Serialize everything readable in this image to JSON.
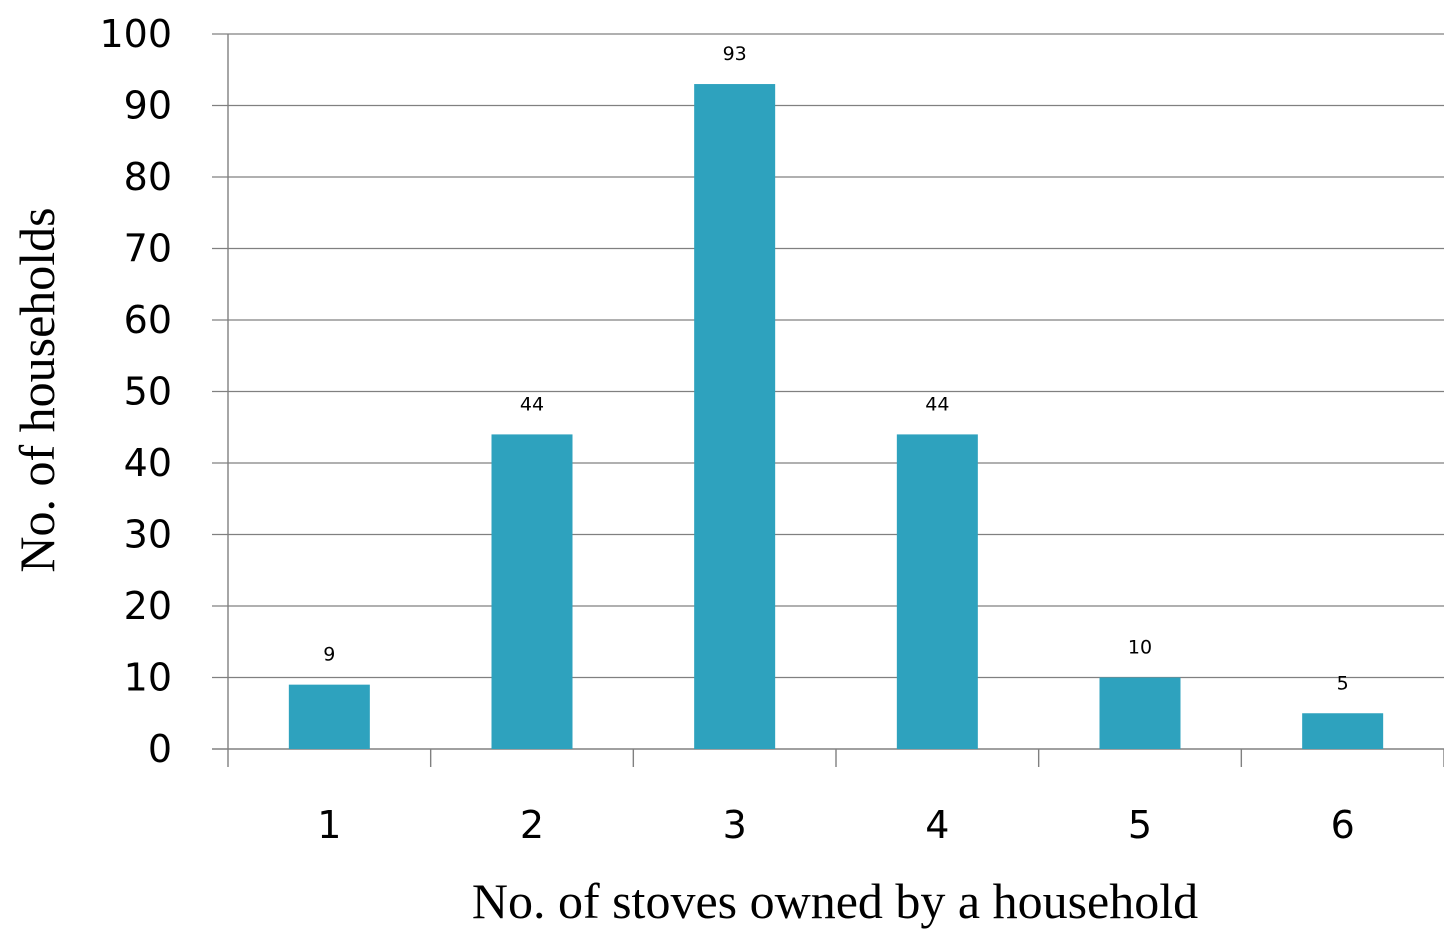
{
  "chart_data": {
    "type": "bar",
    "categories": [
      "1",
      "2",
      "3",
      "4",
      "5",
      "6"
    ],
    "values": [
      9,
      44,
      93,
      44,
      10,
      5
    ],
    "data_labels": [
      "9",
      "44",
      "93",
      "44",
      "10",
      "5"
    ],
    "xlabel": "No. of stoves owned by a household",
    "ylabel": "No. of households",
    "ylim": [
      0,
      100
    ],
    "yticks": [
      "0",
      "10",
      "20",
      "30",
      "40",
      "50",
      "60",
      "70",
      "80",
      "90",
      "100"
    ],
    "grid": true,
    "legend": "none"
  },
  "colors": {
    "bar": "#2ea2be",
    "grid": "#808080",
    "text": "#000000"
  }
}
